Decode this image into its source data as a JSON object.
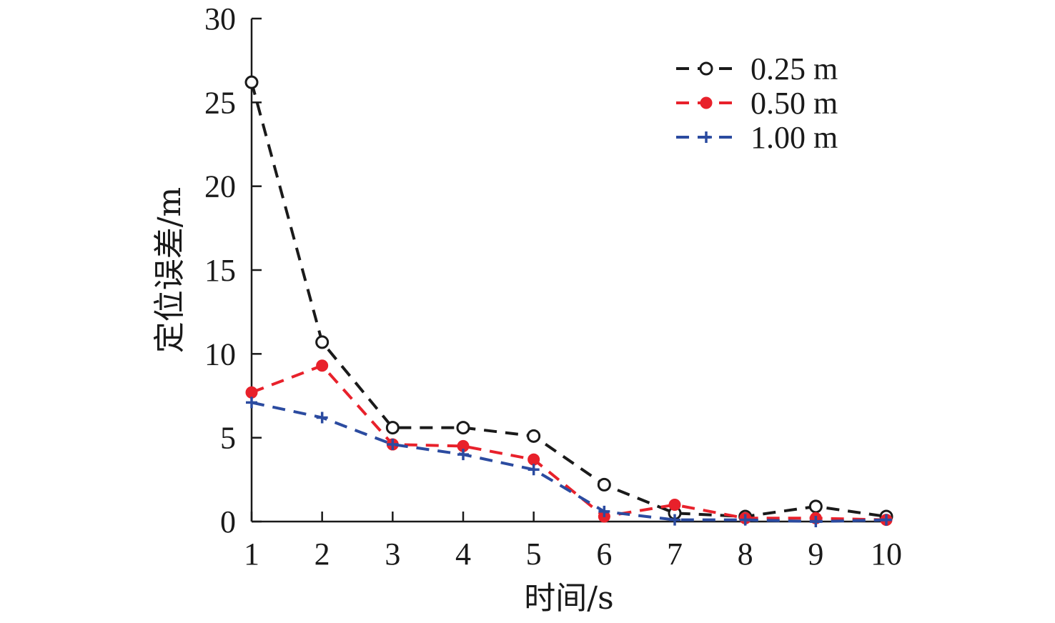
{
  "chart_data": {
    "type": "line",
    "x": [
      1,
      2,
      3,
      4,
      5,
      6,
      7,
      8,
      9,
      10
    ],
    "xlabel": "时间/s",
    "ylabel": "定位误差/m",
    "xlim": [
      1,
      10
    ],
    "ylim": [
      0,
      30
    ],
    "xticks": [
      "1",
      "2",
      "3",
      "4",
      "5",
      "6",
      "7",
      "8",
      "9",
      "10"
    ],
    "yticks": [
      "0",
      "5",
      "10",
      "15",
      "20",
      "25",
      "30"
    ],
    "grid": false,
    "legend_position": "top-right",
    "series": [
      {
        "name": "0.25 m",
        "color": "#1a1a1a",
        "marker": "open-circle",
        "line_style": "dashed",
        "values": [
          26.2,
          10.7,
          5.6,
          5.6,
          5.1,
          2.2,
          0.5,
          0.3,
          0.9,
          0.3
        ]
      },
      {
        "name": "0.50 m",
        "color": "#e8212b",
        "marker": "filled-circle",
        "line_style": "dashed",
        "values": [
          7.7,
          9.3,
          4.6,
          4.5,
          3.7,
          0.3,
          1.0,
          0.2,
          0.2,
          0.1
        ]
      },
      {
        "name": "1.00 m",
        "color": "#2b4ba0",
        "marker": "plus",
        "line_style": "dashed",
        "values": [
          7.1,
          6.2,
          4.6,
          4.0,
          3.1,
          0.6,
          0.1,
          0.1,
          0.0,
          0.1
        ]
      }
    ]
  }
}
